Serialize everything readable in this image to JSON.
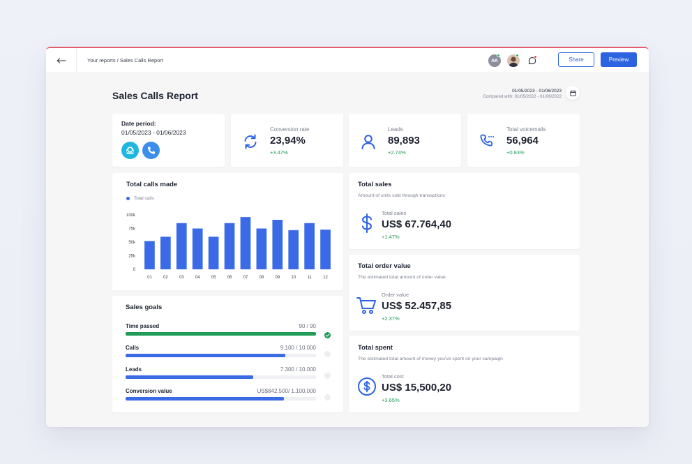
{
  "topbar": {
    "breadcrumb": "Your reports / Sales Calls Report",
    "avatar_initials": "AK",
    "share_label": "Share",
    "preview_label": "Preview",
    "accent_color": "#2b63e0"
  },
  "header": {
    "title": "Sales Calls Report",
    "date_range": "01/05/2023 - 01/06/2023",
    "compared_with": "Compared with: 01/05/2022 - 01/06/2022"
  },
  "date_period": {
    "label": "Date period:",
    "value": "01/05/2023 - 01/06/2023",
    "icons": [
      "aircall-icon",
      "phone-icon"
    ]
  },
  "kpis": [
    {
      "label": "Conversion rate",
      "value": "23,94%",
      "delta": "+3.47%",
      "icon": "refresh-icon"
    },
    {
      "label": "Leads",
      "value": "89,893",
      "delta": "+2.74%",
      "icon": "user-icon"
    },
    {
      "label": "Total voicemails",
      "value": "56,964",
      "delta": "+0.83%",
      "icon": "voicemail-phone-icon"
    }
  ],
  "calls_chart": {
    "title": "Total calls made",
    "legend": "Total calls"
  },
  "chart_data": {
    "type": "bar",
    "title": "Total calls made",
    "categories": [
      "01",
      "02",
      "03",
      "04",
      "05",
      "06",
      "07",
      "08",
      "09",
      "10",
      "11",
      "12"
    ],
    "series": [
      {
        "name": "Total calls",
        "values": [
          52000,
          60000,
          85000,
          75000,
          60000,
          85000,
          96000,
          75000,
          91000,
          72000,
          85000,
          73000
        ],
        "color": "#3b6ae6"
      }
    ],
    "yticks": [
      "0",
      "25k",
      "50k",
      "75k",
      "100k"
    ],
    "ylim": [
      0,
      100000
    ],
    "xlabel": "",
    "ylabel": ""
  },
  "sales_goals": {
    "title": "Sales goals",
    "items": [
      {
        "name": "Time passed",
        "value": "90 / 90",
        "progress": 1.0,
        "color": "#1f9d56",
        "complete": true
      },
      {
        "name": "Calls",
        "value": "9.100 / 10.000",
        "progress": 0.84,
        "color": "#3b6ae6",
        "complete": false
      },
      {
        "name": "Leads",
        "value": "7.300 / 10.000",
        "progress": 0.67,
        "color": "#3b6ae6",
        "complete": false
      },
      {
        "name": "Conversion value",
        "value": "US$842.500/ 1.100.000",
        "progress": 0.83,
        "color": "#3b6ae6",
        "complete": false
      }
    ]
  },
  "sales_cards": [
    {
      "title": "Total sales",
      "subtitle": "Amount of units sold through transactions",
      "label": "Total sales",
      "value": "US$ 67.764,40",
      "delta": "+1.47%",
      "icon": "dollar-icon"
    },
    {
      "title": "Total order value",
      "subtitle": "The estimated total amount of order value",
      "label": "Order value",
      "value": "US$ 52.457,85",
      "delta": "+2.37%",
      "icon": "cart-icon"
    },
    {
      "title": "Total spent",
      "subtitle": "The estimated total amount of money you've spent on your campaign",
      "label": "Total cost",
      "value": "US$ 15,500,20",
      "delta": "+3.65%",
      "icon": "dollar-circle-icon"
    }
  ]
}
